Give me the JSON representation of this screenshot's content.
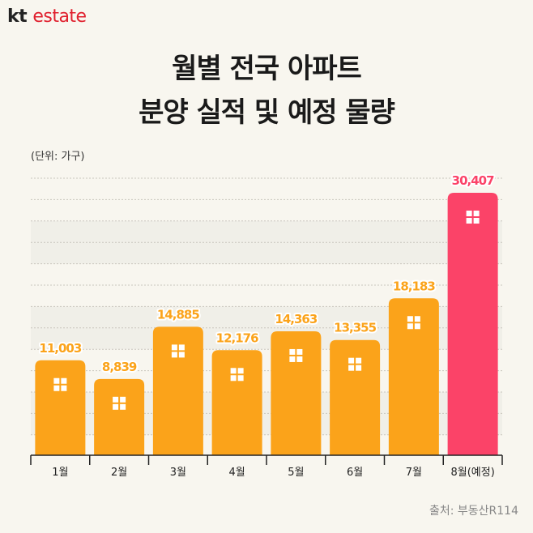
{
  "logo": {
    "kt": "kt",
    "estate": "estate"
  },
  "title_line1": "월별 전국 아파트",
  "title_line2": "분양 실적 및 예정 물량",
  "source": "출처: 부동산R114",
  "chart_data": {
    "type": "bar",
    "title": "월별 전국 아파트 분양 실적 및 예정 물량",
    "unit_label": "(단위: 가구)",
    "categories": [
      "1월",
      "2월",
      "3월",
      "4월",
      "5월",
      "6월",
      "7월",
      "8월(예정)"
    ],
    "values": [
      11003,
      8839,
      14885,
      12176,
      14363,
      13355,
      18183,
      30407
    ],
    "value_labels": [
      "11,003",
      "8,839",
      "14,885",
      "12,176",
      "14,363",
      "13,355",
      "18,183",
      "30,407"
    ],
    "highlight_index": 7,
    "ylim": [
      0,
      31000
    ],
    "grid": true,
    "colors": {
      "normal": "#fba31a",
      "highlight": "#fb4368",
      "axis": "#222222"
    }
  }
}
